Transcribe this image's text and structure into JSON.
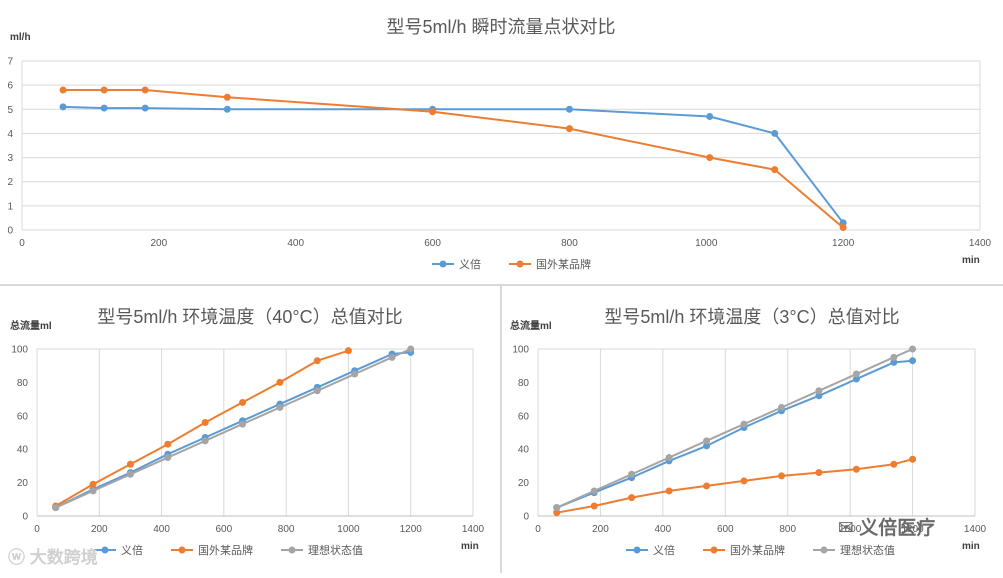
{
  "chart_data": [
    {
      "type": "line",
      "title": "型号5ml/h 瞬时流量点状对比",
      "ylabel": "ml/h",
      "xlabel": "min",
      "xlim": [
        0,
        1400
      ],
      "ylim": [
        0,
        7
      ],
      "xticks": [
        0,
        200,
        400,
        600,
        800,
        1000,
        1200,
        1400
      ],
      "yticks": [
        0,
        1,
        2,
        3,
        4,
        5,
        6,
        7
      ],
      "grid": "horizontal",
      "legend": "bottom",
      "series": [
        {
          "name": "义倍",
          "color": "#5b9bd5",
          "x": [
            60,
            120,
            180,
            300,
            600,
            800,
            1005,
            1100,
            1200
          ],
          "y": [
            5.1,
            5.05,
            5.05,
            5.0,
            5.0,
            5.0,
            4.7,
            4.0,
            0.3
          ]
        },
        {
          "name": "国外某品牌",
          "color": "#ed7d31",
          "x": [
            60,
            120,
            180,
            300,
            600,
            800,
            1005,
            1100,
            1200
          ],
          "y": [
            5.8,
            5.8,
            5.8,
            5.5,
            4.9,
            4.2,
            3.0,
            2.5,
            0.1
          ]
        }
      ]
    },
    {
      "type": "line",
      "title": "型号5ml/h 环境温度（40°C）总值对比",
      "ylabel": "总流量ml",
      "xlabel": "min",
      "xlim": [
        0,
        1400
      ],
      "ylim": [
        0,
        100
      ],
      "xticks": [
        0,
        200,
        400,
        600,
        800,
        1000,
        1200,
        1400
      ],
      "yticks": [
        0,
        20,
        40,
        60,
        80,
        100
      ],
      "grid": "vertical",
      "legend": "bottom",
      "series": [
        {
          "name": "义倍",
          "color": "#5b9bd5",
          "x": [
            60,
            180,
            300,
            420,
            540,
            660,
            780,
            900,
            1020,
            1140,
            1200
          ],
          "y": [
            5,
            16,
            26,
            37,
            47,
            57,
            67,
            77,
            87,
            97,
            98
          ]
        },
        {
          "name": "国外某品牌",
          "color": "#ed7d31",
          "x": [
            60,
            180,
            300,
            420,
            540,
            660,
            780,
            900,
            1000
          ],
          "y": [
            6,
            19,
            31,
            43,
            56,
            68,
            80,
            93,
            99
          ]
        },
        {
          "name": "理想状态值",
          "color": "#a5a5a5",
          "x": [
            60,
            180,
            300,
            420,
            540,
            660,
            780,
            900,
            1020,
            1140,
            1200
          ],
          "y": [
            5,
            15,
            25,
            35,
            45,
            55,
            65,
            75,
            85,
            95,
            100
          ]
        }
      ]
    },
    {
      "type": "line",
      "title": "型号5ml/h 环境温度（3°C）总值对比",
      "ylabel": "总流量ml",
      "xlabel": "min",
      "xlim": [
        0,
        1400
      ],
      "ylim": [
        0,
        100
      ],
      "xticks": [
        0,
        200,
        400,
        600,
        800,
        1000,
        1200,
        1400
      ],
      "yticks": [
        0,
        20,
        40,
        60,
        80,
        100
      ],
      "grid": "vertical",
      "legend": "bottom",
      "series": [
        {
          "name": "义倍",
          "color": "#5b9bd5",
          "x": [
            60,
            180,
            300,
            420,
            540,
            660,
            780,
            900,
            1020,
            1140,
            1200
          ],
          "y": [
            5,
            14,
            23,
            33,
            42,
            53,
            63,
            72,
            82,
            92,
            93
          ]
        },
        {
          "name": "国外某品牌",
          "color": "#ed7d31",
          "x": [
            60,
            180,
            300,
            420,
            540,
            660,
            780,
            900,
            1020,
            1140,
            1200
          ],
          "y": [
            2,
            6,
            11,
            15,
            18,
            21,
            24,
            26,
            28,
            31,
            34
          ]
        },
        {
          "name": "理想状态值",
          "color": "#a5a5a5",
          "x": [
            60,
            180,
            300,
            420,
            540,
            660,
            780,
            900,
            1020,
            1140,
            1200
          ],
          "y": [
            5,
            15,
            25,
            35,
            45,
            55,
            65,
            75,
            85,
            95,
            100
          ]
        }
      ]
    }
  ],
  "watermarks": {
    "left": "大数跨境",
    "right": "义倍医疗"
  }
}
